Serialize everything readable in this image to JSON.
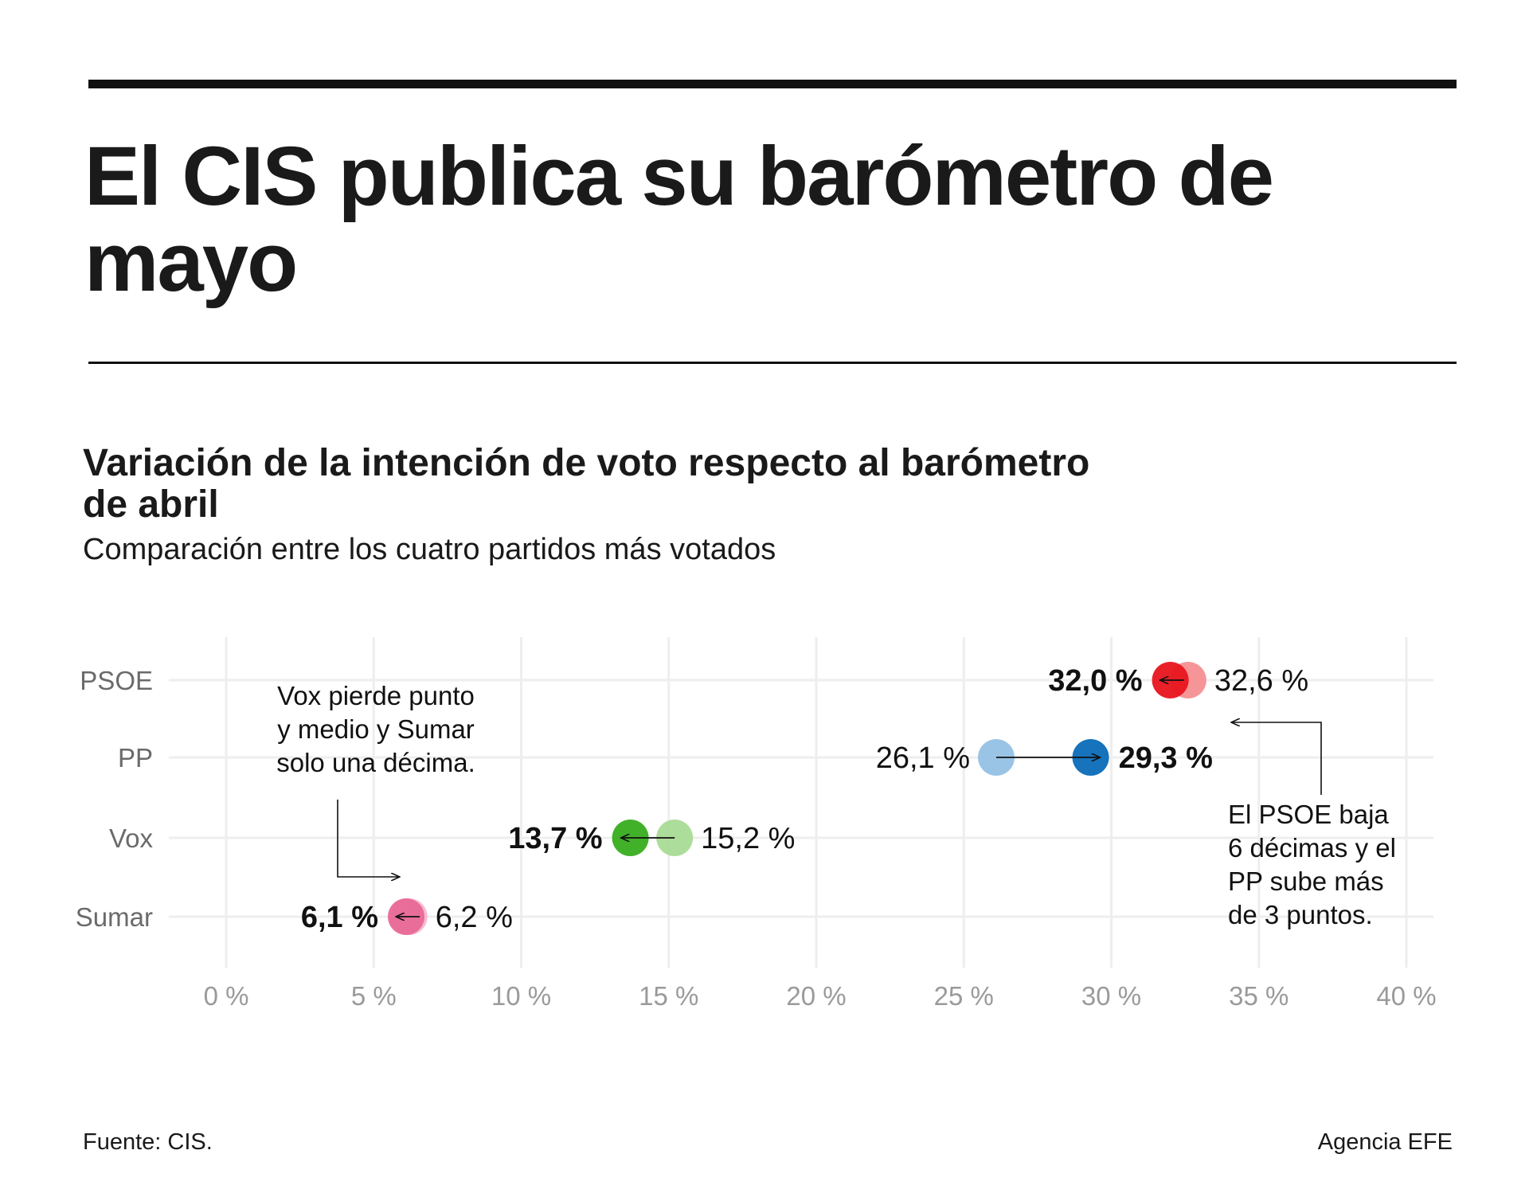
{
  "headline": "El CIS publica su barómetro de mayo",
  "chart_data": {
    "type": "dumbbell",
    "title": "Variación de la intención de voto respecto al barómetro de abril",
    "subtitle": "Comparación entre los cuatro partidos más votados",
    "categories": [
      "PSOE",
      "PP",
      "Vox",
      "Sumar"
    ],
    "x_ticks": [
      "0 %",
      "5 %",
      "10 %",
      "15 %",
      "20 %",
      "25 %",
      "30 %",
      "35 %",
      "40 %"
    ],
    "xlim": [
      0,
      40
    ],
    "grid": true,
    "rows": [
      {
        "party": "PSOE",
        "abril": 32.6,
        "abril_label": "32,6 %",
        "mayo": 32.0,
        "mayo_label": "32,0 %",
        "color_mayo": "#e8141c",
        "color_abril": "#f58a8d"
      },
      {
        "party": "PP",
        "abril": 26.1,
        "abril_label": "26,1 %",
        "mayo": 29.3,
        "mayo_label": "29,3 %",
        "color_mayo": "#0a6cb8",
        "color_abril": "#8fbee3"
      },
      {
        "party": "Vox",
        "abril": 15.2,
        "abril_label": "15,2 %",
        "mayo": 13.7,
        "mayo_label": "13,7 %",
        "color_mayo": "#37ad1e",
        "color_abril": "#a4d98f"
      },
      {
        "party": "Sumar",
        "abril": 6.2,
        "abril_label": "6,2 %",
        "mayo": 6.1,
        "mayo_label": "6,1 %",
        "color_mayo": "#e86896",
        "color_abril": "#f5b3cb"
      }
    ],
    "annotations": [
      {
        "lines": [
          "Vox pierde punto",
          "y medio y Sumar",
          "solo una décima."
        ]
      },
      {
        "lines": [
          "El PSOE baja",
          "6 décimas y el",
          "PP sube más",
          "de 3 puntos."
        ]
      }
    ]
  },
  "footer": {
    "source": "Fuente: CIS.",
    "credit": "Agencia EFE"
  }
}
